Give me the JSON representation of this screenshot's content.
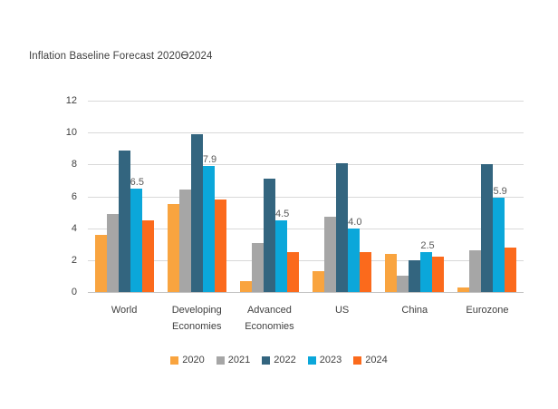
{
  "chart": {
    "title": "Inflation Baseline Forecast 2020Ɵ2024"
  },
  "chart_data": {
    "type": "bar",
    "title": "Inflation Baseline Forecast 2020Ɵ2024",
    "categories": [
      "World",
      "Developing Economies",
      "Advanced Economies",
      "US",
      "China",
      "Eurozone"
    ],
    "series": [
      {
        "name": "2020",
        "color": "#F9A43F",
        "values": [
          3.6,
          5.5,
          0.7,
          1.3,
          2.4,
          0.3
        ]
      },
      {
        "name": "2021",
        "color": "#A6A6A6",
        "values": [
          4.9,
          6.4,
          3.1,
          4.7,
          1.0,
          2.6
        ]
      },
      {
        "name": "2022",
        "color": "#33657F",
        "values": [
          8.9,
          9.9,
          7.1,
          8.1,
          2.0,
          8.0
        ]
      },
      {
        "name": "2023",
        "color": "#0BA7DA",
        "values": [
          6.5,
          7.9,
          4.5,
          4.0,
          2.5,
          5.9
        ],
        "data_labels": true
      },
      {
        "name": "2024",
        "color": "#FB6A1C",
        "values": [
          4.5,
          5.8,
          2.5,
          2.5,
          2.2,
          2.8
        ]
      }
    ],
    "data_labels_2023": [
      "6.5",
      "7.9",
      "4.5",
      "4.0",
      "2.5",
      "5.9"
    ],
    "xlabel": "",
    "ylabel": "",
    "ylim": [
      0,
      12
    ],
    "yticks": [
      0,
      2,
      4,
      6,
      8,
      10,
      12
    ],
    "grid": "horizontal",
    "legend_position": "bottom",
    "legend_entries": [
      "2020",
      "2021",
      "2022",
      "2023",
      "2024"
    ],
    "colors": {
      "axis_text": "#404040",
      "gridline": "#d9d9d9",
      "data_label_text": "#595959"
    }
  }
}
